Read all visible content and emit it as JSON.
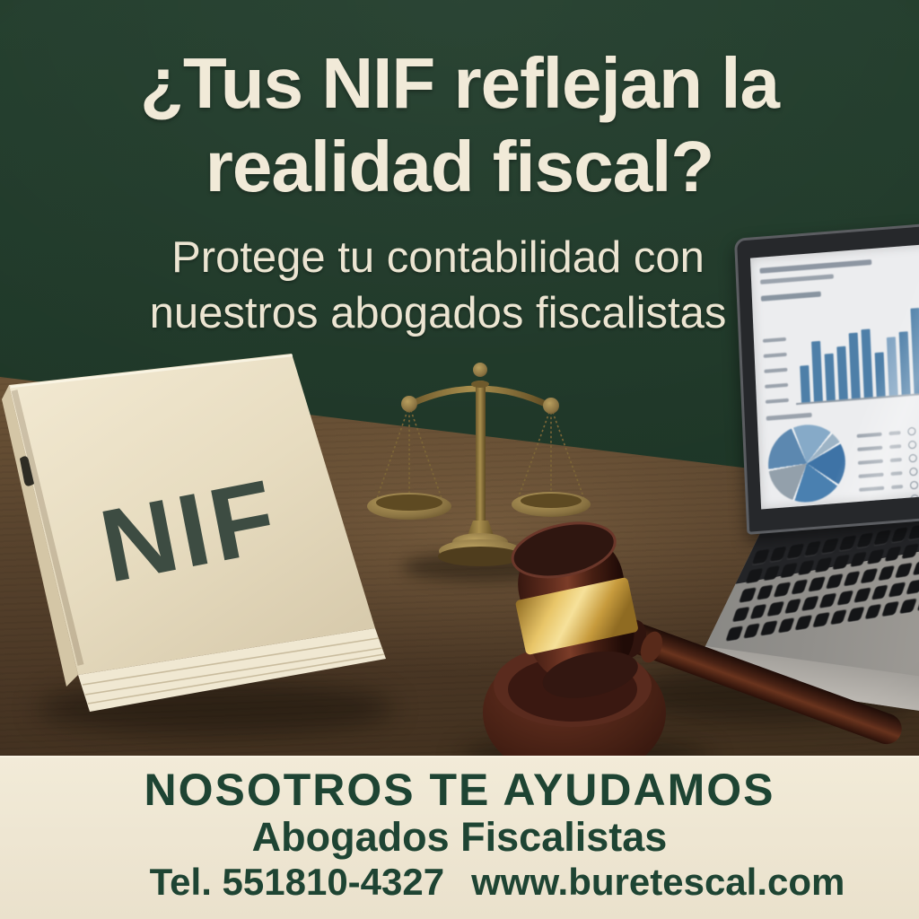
{
  "poster": {
    "headline": {
      "line1": "¿Tus NIF reflejan la",
      "line2": "realidad fiscal?"
    },
    "subtitle": {
      "line1": "Protege tu contabilidad con",
      "line2": "nuestros abogados fiscalistas"
    },
    "book_label": "NIF",
    "footer": {
      "heading": "NOSOTROS TE AYUDAMOS",
      "subheading": "Abogados Fiscalistas",
      "phone": "Tel. 551810-4327",
      "website": "www.buretescal.com"
    },
    "colors": {
      "background_green": "#20392a",
      "headline_cream": "#f1ead8",
      "banner_cream": "#ece3cf",
      "banner_text_green": "#1e4433",
      "desk_brown": "#58432d",
      "book_cover_cream": "#e9dfc6",
      "brass": "#8a7342",
      "gavel_mahogany": "#4a2114",
      "gavel_gold_band": "#dcb85e",
      "chart_blue": "#4e7fa8"
    }
  },
  "laptop_screen": {
    "chart_data": [
      {
        "type": "bar",
        "values": [
          38,
          62,
          48,
          55,
          68,
          70,
          45,
          60,
          65,
          88
        ],
        "color": "#4e7fa8",
        "light_indices": [
          7
        ],
        "light_color": "#84a6c4",
        "title": "",
        "note_labels_illegible": true
      },
      {
        "type": "pie",
        "slices": [
          {
            "value": 62,
            "color": "#86aac8"
          },
          {
            "value": 20,
            "color": "#9db4c6"
          },
          {
            "value": 66,
            "color": "#3e73a6"
          },
          {
            "value": 74,
            "color": "#4a80b0"
          },
          {
            "value": 62,
            "color": "#93a0ab"
          },
          {
            "value": 76,
            "color": "#5c88b0"
          }
        ]
      }
    ]
  }
}
